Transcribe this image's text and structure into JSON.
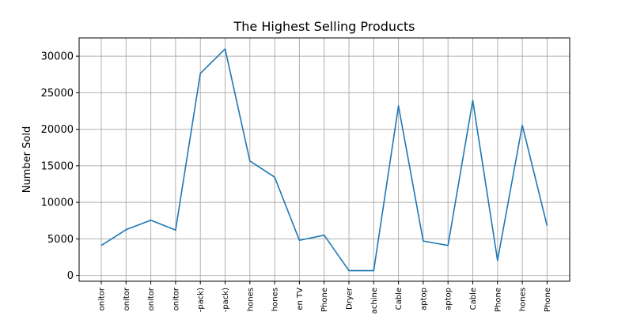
{
  "chart_data": {
    "type": "line",
    "title": "The Highest Selling Products",
    "xlabel": "",
    "ylabel": "Number Sold",
    "categories": [
      "onitor",
      "onitor",
      "onitor",
      "onitor",
      "-pack)",
      "-pack)",
      "hones",
      "hones",
      "en TV",
      "Phone",
      "Dryer",
      "achine",
      "Cable",
      "aptop",
      "aptop",
      "Cable",
      "Phone",
      "hones",
      "Phone"
    ],
    "series": [
      {
        "values": [
          4100,
          6250,
          7550,
          6200,
          27650,
          31000,
          15650,
          13450,
          4800,
          5500,
          650,
          650,
          23200,
          4700,
          4100,
          23950,
          2050,
          20550,
          6800
        ],
        "color": "#1f77b4"
      }
    ],
    "ylim": [
      -800,
      32500
    ],
    "yticks": [
      0,
      5000,
      10000,
      15000,
      20000,
      25000,
      30000
    ],
    "ytick_labels": [
      "0",
      "5000",
      "10000",
      "15000",
      "20000",
      "25000",
      "30000"
    ],
    "grid": true,
    "legend": "none"
  }
}
